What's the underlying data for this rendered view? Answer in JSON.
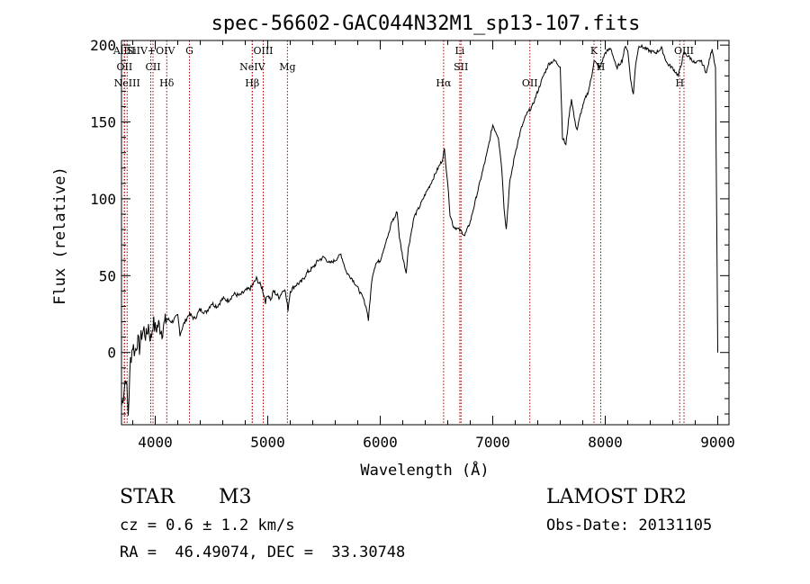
{
  "chart_data": {
    "type": "line",
    "title": "spec-56602-GAC044N32M1_sp13-107.fits",
    "xlabel": "Wavelength (Å)",
    "ylabel": "Flux (relative)",
    "xlim": [
      3700,
      9100
    ],
    "ylim": [
      -47,
      203
    ],
    "x_ticks": [
      4000,
      5000,
      6000,
      7000,
      8000,
      9000
    ],
    "y_ticks": [
      0,
      50,
      100,
      150,
      200
    ],
    "line_color": "#000000",
    "marker_color": "#aa0000",
    "spectrum": {
      "x": [
        3700,
        3720,
        3740,
        3760,
        3780,
        3800,
        3820,
        3840,
        3860,
        3880,
        3900,
        3920,
        3940,
        3960,
        3980,
        4000,
        4030,
        4060,
        4100,
        4150,
        4200,
        4220,
        4250,
        4300,
        4350,
        4400,
        4450,
        4500,
        4550,
        4600,
        4650,
        4700,
        4750,
        4800,
        4850,
        4900,
        4950,
        4980,
        5000,
        5030,
        5050,
        5100,
        5150,
        5180,
        5200,
        5250,
        5300,
        5350,
        5400,
        5450,
        5500,
        5550,
        5600,
        5650,
        5700,
        5750,
        5800,
        5850,
        5880,
        5895,
        5910,
        5930,
        5960,
        6000,
        6050,
        6080,
        6100,
        6130,
        6150,
        6170,
        6200,
        6230,
        6250,
        6280,
        6300,
        6350,
        6400,
        6450,
        6500,
        6550,
        6570,
        6600,
        6620,
        6650,
        6700,
        6730,
        6750,
        6800,
        6850,
        6900,
        6950,
        7000,
        7050,
        7080,
        7100,
        7120,
        7150,
        7200,
        7250,
        7300,
        7350,
        7400,
        7450,
        7500,
        7550,
        7600,
        7620,
        7650,
        7680,
        7700,
        7730,
        7750,
        7780,
        7820,
        7850,
        7880,
        7900,
        7950,
        8000,
        8050,
        8100,
        8150,
        8180,
        8200,
        8230,
        8250,
        8270,
        8300,
        8350,
        8400,
        8450,
        8500,
        8550,
        8600,
        8650,
        8700,
        8750,
        8800,
        8850,
        8900,
        8950,
        8980,
        9000
      ],
      "y": [
        -35,
        -25,
        -15,
        -40,
        -5,
        5,
        0,
        8,
        3,
        12,
        15,
        10,
        18,
        8,
        20,
        15,
        18,
        14,
        22,
        20,
        24,
        12,
        18,
        25,
        22,
        28,
        26,
        32,
        30,
        35,
        34,
        38,
        37,
        40,
        42,
        48,
        42,
        33,
        38,
        34,
        40,
        36,
        42,
        28,
        40,
        44,
        46,
        52,
        55,
        60,
        62,
        58,
        60,
        64,
        52,
        48,
        42,
        35,
        28,
        21,
        35,
        50,
        58,
        60,
        72,
        78,
        85,
        88,
        92,
        75,
        62,
        52,
        68,
        80,
        88,
        95,
        103,
        110,
        118,
        125,
        132,
        110,
        90,
        82,
        80,
        78,
        76,
        85,
        100,
        115,
        130,
        148,
        140,
        120,
        95,
        80,
        110,
        130,
        145,
        155,
        160,
        170,
        180,
        188,
        190,
        186,
        140,
        135,
        155,
        165,
        150,
        145,
        155,
        165,
        170,
        180,
        190,
        185,
        195,
        198,
        185,
        190,
        200,
        196,
        175,
        168,
        188,
        200,
        198,
        196,
        195,
        198,
        188,
        185,
        180,
        195,
        192,
        188,
        190,
        182,
        198,
        185,
        0
      ],
      "name": ""
    },
    "spectral_lines": [
      {
        "label": "AlIII",
        "x": 3725
      },
      {
        "label": "OII",
        "x": 3727
      },
      {
        "label": "NeIII",
        "x": 3750
      },
      {
        "label": "SiIV+OIV",
        "x": 3960
      },
      {
        "label": "CII",
        "x": 3980
      },
      {
        "label": "Hδ",
        "x": 4102
      },
      {
        "label": "G",
        "x": 4304
      },
      {
        "label": "NeIV",
        "x": 4863
      },
      {
        "label": "Hβ",
        "x": 4862
      },
      {
        "label": "OIII",
        "x": 4960
      },
      {
        "label": "Mg",
        "x": 5175
      },
      {
        "label": "Hα",
        "x": 6563
      },
      {
        "label": "Li",
        "x": 6707
      },
      {
        "label": "SII",
        "x": 6718
      },
      {
        "label": "OII",
        "x": 7330
      },
      {
        "label": "K",
        "x": 7900
      },
      {
        "label": "H",
        "x": 7960
      },
      {
        "label": "H",
        "x": 8662
      },
      {
        "label": "OIII",
        "x": 8700
      }
    ]
  },
  "info": {
    "object_class": "STAR",
    "subclass": "M3",
    "survey": "LAMOST DR2",
    "redshift": "cz = 0.6 ± 1.2 km/s",
    "obs_date": "Obs-Date: 20131105",
    "coords": "RA =  46.49074, DEC =  33.30748"
  }
}
